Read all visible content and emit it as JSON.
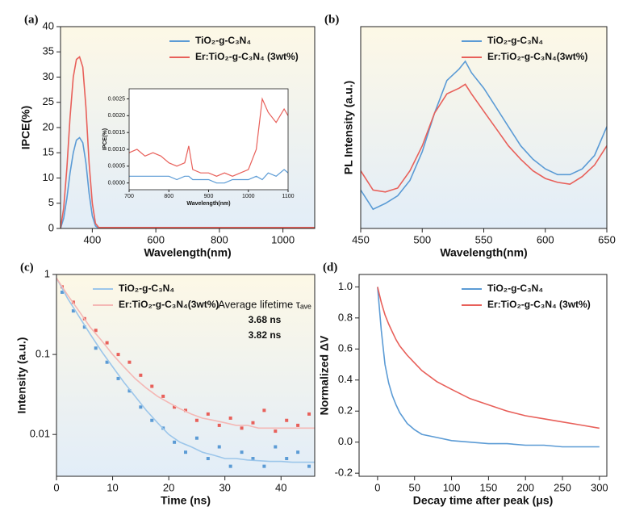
{
  "chart_data": [
    {
      "type": "line",
      "panel_label": "(a)",
      "x_label": "Wavelength(nm)",
      "y_label": "IPCE(%)",
      "xlim": [
        300,
        1100
      ],
      "xticks": [
        400,
        600,
        800,
        1000
      ],
      "ylim": [
        0,
        40
      ],
      "yticks": [
        0,
        5,
        10,
        15,
        20,
        25,
        30,
        35,
        40
      ],
      "legend": "upper right",
      "x": [
        300,
        310,
        320,
        330,
        340,
        350,
        360,
        370,
        380,
        390,
        400,
        410,
        420,
        500,
        600,
        700,
        800,
        900,
        1000,
        1100
      ],
      "series": [
        {
          "name": "TiO₂-g-C₃N₄",
          "color": "#5b9bd5",
          "values": [
            0,
            2,
            6,
            11,
            15,
            17.5,
            18,
            17,
            13,
            7,
            2.5,
            0.5,
            0,
            0,
            0,
            0,
            0,
            0,
            0,
            0
          ]
        },
        {
          "name": "Er:TiO₂-g-C₃N₄ (3wt%)",
          "color": "#e8605a",
          "values": [
            0,
            4,
            12,
            22,
            30,
            33.5,
            34,
            32,
            24,
            13,
            5,
            1,
            0.2,
            0.2,
            0.2,
            0.2,
            0.2,
            0.2,
            0.2,
            0.2
          ]
        }
      ]
    },
    {
      "type": "line",
      "x_label": "Wavelength(nm)",
      "y_label": "IPCE(%)",
      "xlim": [
        700,
        1100
      ],
      "xticks": [
        700,
        800,
        900,
        1000,
        1100
      ],
      "ylim": [
        -0.0002,
        0.0028
      ],
      "yticks": [
        {
          "value": 0,
          "label": "0.0000"
        },
        {
          "value": 0.0005,
          "label": "0.0005"
        },
        {
          "value": 0.001,
          "label": "0.0010"
        },
        {
          "value": 0.0015,
          "label": "0.0015"
        },
        {
          "value": 0.002,
          "label": "0.0020"
        },
        {
          "value": 0.0025,
          "label": "0.0025"
        }
      ],
      "x": [
        700,
        720,
        740,
        760,
        780,
        800,
        820,
        840,
        850,
        860,
        880,
        900,
        920,
        940,
        960,
        980,
        1000,
        1020,
        1035,
        1050,
        1070,
        1090,
        1100
      ],
      "series": [
        {
          "color": "#5b9bd5",
          "values": [
            0.0002,
            0.0002,
            0.0002,
            0.0002,
            0.0002,
            0.0002,
            0.0001,
            0.0002,
            0.0002,
            0.0001,
            0.0001,
            0.0001,
            0,
            0,
            0.0001,
            0.0001,
            0.0001,
            0.0002,
            0.0001,
            0.0003,
            0.0002,
            0.0004,
            0.0003
          ]
        },
        {
          "color": "#e8605a",
          "values": [
            0.0009,
            0.001,
            0.0008,
            0.0009,
            0.0008,
            0.0006,
            0.0005,
            0.0006,
            0.0011,
            0.0004,
            0.0003,
            0.0003,
            0.0002,
            0.0003,
            0.0002,
            0.0003,
            0.0004,
            0.001,
            0.0025,
            0.0021,
            0.0018,
            0.0022,
            0.002
          ]
        }
      ]
    },
    {
      "type": "line",
      "panel_label": "(b)",
      "x_label": "Wavelength(nm)",
      "y_label": "PL Intensity (a.u.)",
      "xlim": [
        450,
        650
      ],
      "xticks": [
        450,
        500,
        550,
        600,
        650
      ],
      "ylim": [
        -0.05,
        1
      ],
      "legend": "upper right",
      "x": [
        450,
        460,
        470,
        480,
        490,
        500,
        510,
        520,
        530,
        535,
        540,
        550,
        560,
        570,
        580,
        590,
        600,
        610,
        620,
        630,
        640,
        650
      ],
      "series": [
        {
          "name": "TiO₂-g-C₃N₄",
          "color": "#5b9bd5",
          "values": [
            0.15,
            0.05,
            0.08,
            0.12,
            0.2,
            0.35,
            0.55,
            0.72,
            0.78,
            0.82,
            0.76,
            0.68,
            0.58,
            0.48,
            0.38,
            0.31,
            0.26,
            0.23,
            0.23,
            0.26,
            0.33,
            0.48
          ]
        },
        {
          "name": "Er:TiO₂-g-C₃N₄(3wt%)",
          "color": "#e8605a",
          "values": [
            0.25,
            0.15,
            0.14,
            0.16,
            0.25,
            0.38,
            0.55,
            0.65,
            0.68,
            0.7,
            0.65,
            0.56,
            0.47,
            0.38,
            0.31,
            0.25,
            0.21,
            0.19,
            0.18,
            0.22,
            0.28,
            0.38
          ]
        }
      ]
    },
    {
      "type": "scatter",
      "panel_label": "(c)",
      "x_label": "Time (ns)",
      "y_label": "Intensity (a.u.)",
      "xlim": [
        0,
        46
      ],
      "xticks": [
        0,
        10,
        20,
        30,
        40
      ],
      "yscale": "log",
      "ylim": [
        0.003,
        1
      ],
      "yticks": [
        0.01,
        0.1,
        1
      ],
      "legend": "upper center",
      "annotations": [
        {
          "text": "Average lifetime τₐᵥₑ",
          "color": "#333333"
        },
        {
          "text": "3.68 ns",
          "color": "#5b9bd5"
        },
        {
          "text": "3.82 ns",
          "color": "#f4a3a0"
        }
      ],
      "series": [
        {
          "style": "markers",
          "color": "#5b9bd5",
          "x": [
            1,
            3,
            5,
            7,
            9,
            11,
            13,
            15,
            17,
            19,
            21,
            23,
            25,
            27,
            29,
            31,
            33,
            35,
            37,
            39,
            41,
            43,
            45
          ],
          "values": [
            0.6,
            0.35,
            0.22,
            0.12,
            0.08,
            0.05,
            0.035,
            0.022,
            0.015,
            0.012,
            0.008,
            0.006,
            0.009,
            0.005,
            0.007,
            0.004,
            0.006,
            0.005,
            0.004,
            0.007,
            0.005,
            0.006,
            0.004
          ]
        },
        {
          "style": "markers",
          "color": "#e8605a",
          "x": [
            1,
            3,
            5,
            7,
            9,
            11,
            13,
            15,
            17,
            19,
            21,
            23,
            25,
            27,
            29,
            31,
            33,
            35,
            37,
            39,
            41,
            43,
            45
          ],
          "values": [
            0.7,
            0.45,
            0.28,
            0.2,
            0.14,
            0.1,
            0.08,
            0.055,
            0.04,
            0.03,
            0.022,
            0.02,
            0.015,
            0.018,
            0.013,
            0.016,
            0.012,
            0.014,
            0.02,
            0.011,
            0.015,
            0.013,
            0.018
          ]
        },
        {
          "style": "line",
          "name": "TiO₂-g-C₃N₄",
          "color": "#9cc6ea",
          "x": [
            0,
            2,
            4,
            6,
            8,
            10,
            12,
            14,
            16,
            18,
            20,
            22,
            24,
            26,
            28,
            30,
            32,
            34,
            36,
            38,
            40,
            42,
            44,
            46
          ],
          "values": [
            0.9,
            0.5,
            0.3,
            0.18,
            0.11,
            0.07,
            0.045,
            0.03,
            0.02,
            0.014,
            0.01,
            0.008,
            0.007,
            0.006,
            0.0055,
            0.005,
            0.005,
            0.0048,
            0.0047,
            0.0046,
            0.0046,
            0.0045,
            0.0045,
            0.0045
          ]
        },
        {
          "style": "line",
          "name": "Er:TiO₂-g-C₃N₄(3wt%)",
          "color": "#f4b8b5",
          "x": [
            0,
            2,
            4,
            6,
            8,
            10,
            12,
            14,
            16,
            18,
            20,
            22,
            24,
            26,
            28,
            30,
            32,
            34,
            36,
            38,
            40,
            42,
            44,
            46
          ],
          "values": [
            0.9,
            0.55,
            0.35,
            0.22,
            0.15,
            0.1,
            0.07,
            0.05,
            0.038,
            0.03,
            0.025,
            0.021,
            0.018,
            0.016,
            0.015,
            0.014,
            0.013,
            0.013,
            0.012,
            0.012,
            0.012,
            0.012,
            0.012,
            0.012
          ]
        }
      ]
    },
    {
      "type": "line",
      "panel_label": "(d)",
      "x_label": "Decay time after peak (μs)",
      "y_label": "Normalized ΔV",
      "xlim": [
        -25,
        310
      ],
      "xticks": [
        0,
        50,
        100,
        150,
        200,
        250,
        300
      ],
      "ylim": [
        -0.22,
        1.08
      ],
      "yticks": [
        -0.2,
        {
          "value": 0,
          "label": "0.0"
        },
        0.2,
        0.4,
        0.6,
        0.8,
        {
          "value": 1,
          "label": "1.0"
        }
      ],
      "legend": "upper right",
      "x": [
        0,
        5,
        10,
        15,
        20,
        25,
        30,
        40,
        50,
        60,
        80,
        100,
        125,
        150,
        175,
        200,
        225,
        250,
        275,
        300
      ],
      "series": [
        {
          "name": "TiO₂-g-C₃N₄",
          "color": "#5b9bd5",
          "values": [
            1,
            0.72,
            0.5,
            0.38,
            0.3,
            0.24,
            0.19,
            0.12,
            0.08,
            0.05,
            0.03,
            0.01,
            0,
            -0.01,
            -0.01,
            -0.02,
            -0.02,
            -0.03,
            -0.03,
            -0.03
          ]
        },
        {
          "name": "Er:TiO₂-g-C₃N₄ (3wt%)",
          "color": "#e8605a",
          "values": [
            1,
            0.9,
            0.82,
            0.76,
            0.71,
            0.66,
            0.62,
            0.56,
            0.51,
            0.46,
            0.39,
            0.34,
            0.28,
            0.24,
            0.2,
            0.17,
            0.15,
            0.13,
            0.11,
            0.09
          ]
        }
      ]
    }
  ]
}
